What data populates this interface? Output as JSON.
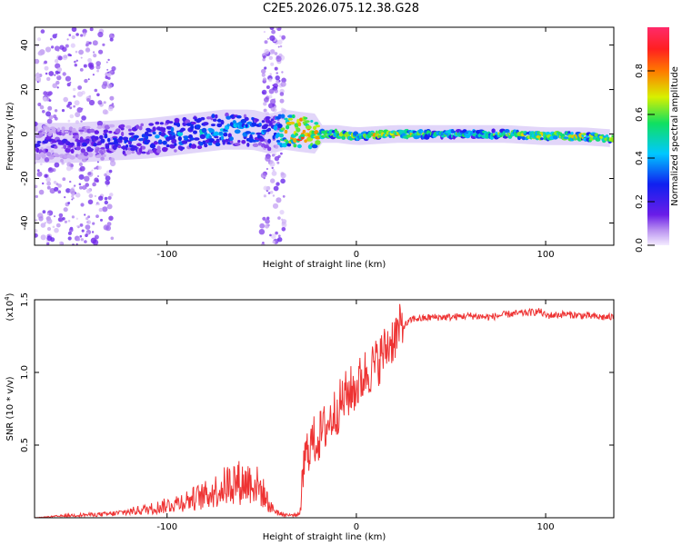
{
  "title": "C2E5.2026.075.12.38.G28",
  "chart_data": [
    {
      "type": "heatmap",
      "xlabel": "Height of straight line (km)",
      "ylabel": "Frequency (Hz)",
      "xlim": [
        -170,
        136
      ],
      "ylim": [
        -50,
        48
      ],
      "xticks": [
        -100,
        0,
        100
      ],
      "xtick_labels": [
        "-100",
        "0",
        "100"
      ],
      "yticks": [
        -40,
        -20,
        0,
        20,
        40
      ],
      "ytick_labels": [
        "-40",
        "-20",
        "0",
        "20",
        "40"
      ],
      "grid": false,
      "colorbar": {
        "label": "Normalized spectral amplitude",
        "range": [
          0,
          1
        ],
        "ticks": [
          0.0,
          0.2,
          0.4,
          0.6,
          0.8
        ],
        "tick_labels": [
          "0.0",
          "0.2",
          "0.4",
          "0.6",
          "0.8"
        ],
        "colormap": "rainbow (violet-blue-cyan-green-yellow-red-magenta)"
      },
      "ridge": {
        "description": "dominant frequency track of normalized spectral amplitude",
        "x": [
          -170,
          -150,
          -130,
          -110,
          -90,
          -70,
          -55,
          -45,
          -38,
          -30,
          -20,
          -10,
          0,
          20,
          40,
          60,
          80,
          100,
          120,
          136
        ],
        "freq": [
          -4,
          -4,
          -3,
          -2,
          0,
          2,
          2,
          0,
          2,
          1,
          0,
          0,
          -1,
          0,
          0,
          0,
          0,
          -1,
          -1,
          -2
        ],
        "amplitude": [
          0.25,
          0.25,
          0.3,
          0.35,
          0.45,
          0.5,
          0.45,
          0.35,
          0.8,
          0.95,
          0.8,
          0.75,
          0.7,
          0.85,
          0.6,
          0.6,
          0.7,
          0.8,
          0.75,
          0.7
        ]
      },
      "noise_bands_x": [
        [
          -170,
          -128
        ],
        [
          -50,
          -38
        ]
      ]
    },
    {
      "type": "line",
      "xlabel": "Height of straight line (km)",
      "ylabel": "SNR (10 * v/v)",
      "multiplier_label": "(x10",
      "multiplier_exp": "4",
      "multiplier_close": ")",
      "xlim": [
        -170,
        136
      ],
      "ylim": [
        0,
        1.5
      ],
      "xticks": [
        -100,
        0,
        100
      ],
      "xtick_labels": [
        "-100",
        "0",
        "100"
      ],
      "yticks": [
        0.5,
        1.0,
        1.5
      ],
      "ytick_labels": [
        "0.5",
        "1.0",
        "1.5"
      ],
      "grid": false,
      "color": "#ee3333",
      "series": [
        {
          "x": [
            -170,
            -150,
            -130,
            -120,
            -110,
            -100,
            -90,
            -80,
            -70,
            -65,
            -60,
            -55,
            -50,
            -45,
            -40,
            -35,
            -30,
            -28,
            -25,
            -20,
            -15,
            -10,
            -5,
            0,
            5,
            10,
            15,
            20,
            25,
            30,
            35,
            40,
            50,
            60,
            70,
            80,
            90,
            97,
            100,
            110,
            120,
            130,
            136
          ],
          "y": [
            0.0,
            0.02,
            0.03,
            0.05,
            0.07,
            0.1,
            0.14,
            0.18,
            0.25,
            0.3,
            0.28,
            0.3,
            0.22,
            0.08,
            0.03,
            0.02,
            0.03,
            0.35,
            0.5,
            0.55,
            0.65,
            0.75,
            0.85,
            0.9,
            1.0,
            1.05,
            1.15,
            1.25,
            1.32,
            1.37,
            1.37,
            1.38,
            1.38,
            1.39,
            1.38,
            1.4,
            1.41,
            1.42,
            1.39,
            1.4,
            1.39,
            1.38,
            1.38
          ]
        }
      ]
    }
  ]
}
